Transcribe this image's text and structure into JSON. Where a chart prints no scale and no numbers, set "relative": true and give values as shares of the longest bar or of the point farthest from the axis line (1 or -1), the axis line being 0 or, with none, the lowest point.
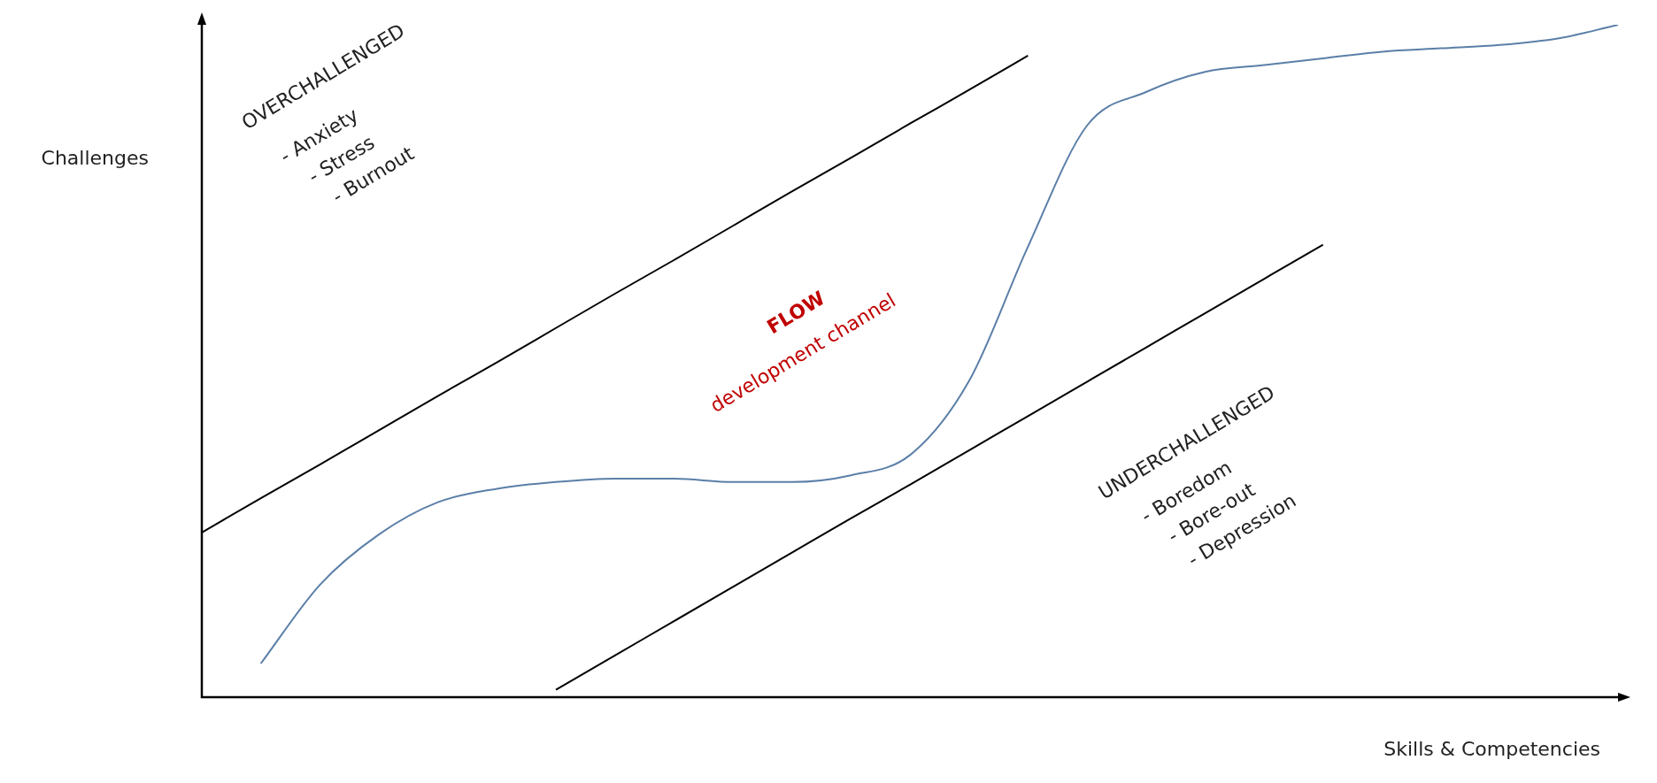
{
  "chart_data": {
    "type": "line",
    "relative": true,
    "xlabel": "Skills & Competencies",
    "ylabel": "Challenges",
    "legend": false,
    "marker": "none",
    "categories": [
      null,
      null,
      null,
      null,
      null,
      null,
      null,
      null,
      null,
      null,
      null,
      null,
      null,
      null,
      null,
      null,
      null,
      null,
      null,
      null,
      null,
      null,
      null,
      null,
      null
    ],
    "series": [
      {
        "color": "#000000",
        "values": [
          0.245,
          0.296,
          0.346,
          0.397,
          0.448,
          0.498,
          0.549,
          0.6,
          0.65,
          0.701,
          0.752,
          0.802,
          0.853,
          0.903,
          0.954,
          null,
          null,
          null,
          null,
          null,
          null,
          null,
          null,
          null,
          null
        ]
      },
      {
        "color": "#000000",
        "values": [
          null,
          null,
          null,
          null,
          null,
          null,
          0.011,
          0.062,
          0.113,
          0.164,
          0.215,
          0.266,
          0.316,
          0.367,
          0.418,
          0.469,
          0.52,
          0.571,
          0.622,
          0.673,
          null,
          null,
          null,
          null,
          null
        ]
      },
      {
        "color": "#5b7fa8",
        "values": [
          null,
          0.05,
          0.167,
          0.242,
          0.29,
          0.31,
          0.32,
          0.325,
          0.325,
          0.32,
          0.32,
          0.33,
          0.36,
          0.47,
          0.67,
          0.85,
          0.9,
          0.93,
          0.94,
          0.95,
          0.96,
          0.965,
          0.97,
          0.98,
          1.0
        ]
      }
    ],
    "annotations": [
      "OVERCHALLENGED",
      "- Anxiety",
      "- Stress",
      "- Burnout",
      "FLOW",
      "development channel",
      "UNDERCHALLENGED",
      "- Boredom",
      "- Bore-out",
      "- Depression"
    ]
  }
}
